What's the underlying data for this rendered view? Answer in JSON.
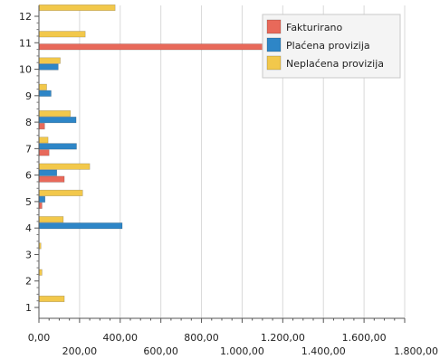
{
  "chart_data": {
    "type": "bar",
    "orientation": "horizontal",
    "categories": [
      "1",
      "2",
      "3",
      "4",
      "5",
      "6",
      "7",
      "8",
      "9",
      "10",
      "11",
      "12"
    ],
    "series": [
      {
        "name": "Fakturirano",
        "color": "#e8695a",
        "values": [
          0,
          0,
          0,
          0,
          15,
          125,
          50,
          28,
          0,
          0,
          1180,
          0
        ]
      },
      {
        "name": "Plaćena provizija",
        "color": "#2e86c7",
        "values": [
          0,
          0,
          0,
          410,
          30,
          88,
          185,
          183,
          60,
          95,
          0,
          0
        ]
      },
      {
        "name": "Neplaćena provizija",
        "color": "#f2c84b",
        "values": [
          125,
          15,
          10,
          120,
          215,
          250,
          45,
          155,
          38,
          105,
          228,
          375
        ]
      }
    ],
    "xlim": [
      0,
      1800
    ],
    "x_ticks_top": [
      "0,00",
      "400,00",
      "800,00",
      "1.200,00",
      "1.600,00"
    ],
    "x_ticks_bottom": [
      "200,00",
      "600,00",
      "1.000,00",
      "1.400,00",
      "1.800,00"
    ],
    "x_tick_values_top": [
      0,
      400,
      800,
      1200,
      1600
    ],
    "x_tick_values_bottom": [
      200,
      600,
      1000,
      1400,
      1800
    ],
    "grid": true,
    "legend": "top-right"
  }
}
